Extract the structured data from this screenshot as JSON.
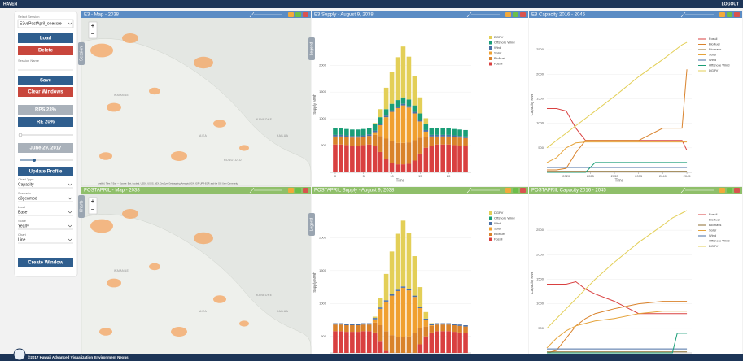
{
  "topbar": {
    "brand": "HAVEN",
    "logout": "LOGOUT"
  },
  "footer": {
    "text": "©2017 Hawaii Advanced Visualization Environment Nexus"
  },
  "sidebar": {
    "session_label": "Select Session",
    "session_value": "E3vsPostApril_onescre",
    "load": "Load",
    "delete": "Delete",
    "session_name": "Session Name",
    "save": "Save",
    "clear": "Clear Windows",
    "rps": "RPS 23%",
    "re": "RE 20%",
    "date": "June 29, 2017",
    "update": "Update Profile",
    "fields": [
      {
        "label": "Chart Type",
        "value": "Capacity"
      },
      {
        "label": "Scenario",
        "value": "e3genmod"
      },
      {
        "label": "Load",
        "value": "Base"
      },
      {
        "label": "Scale",
        "value": "Yearly"
      },
      {
        "label": "Chart",
        "value": "Line"
      }
    ],
    "create": "Create Window",
    "tabs": {
      "session": "Session",
      "charts": "Charts",
      "legend": "Legend"
    }
  },
  "maps": [
    {
      "title": "E3 - Map - 2038",
      "zoom_in": "+",
      "zoom_out": "−",
      "places": [
        "WAIANAE",
        "AIEA",
        "KANEOHE",
        "KAILUA",
        "HONOLULU"
      ],
      "attribution": "Leaflet | Tiles © Esri — Source: Esri, i-cubed, USDA, USGS, AEX, GeoEye, Getmapping, Aerogrid, IGN, IGP, UPR-EGP, and the GIS User Community"
    },
    {
      "title": "POSTAPRIL - Map - 2038",
      "zoom_in": "+",
      "zoom_out": "−",
      "places": [
        "WAIANAE",
        "AIEA",
        "KANEOHE",
        "KAILUA"
      ]
    }
  ],
  "supply": [
    {
      "title": "E3 Supply - August 9, 2038",
      "type": "bar",
      "ylabel": "Supply MWh",
      "xlabel": "Time",
      "x": [
        0,
        1,
        2,
        3,
        4,
        5,
        6,
        7,
        8,
        9,
        10,
        11,
        12,
        13,
        14,
        15,
        16,
        17,
        18,
        19,
        20,
        21,
        22,
        23
      ],
      "xlim": [
        -1,
        24
      ],
      "xticks": [
        0,
        5,
        10,
        15,
        20
      ],
      "ylim": [
        0,
        2550
      ],
      "yticks": [
        500,
        1000,
        1500,
        2000
      ],
      "series": [
        {
          "name": "DGPV",
          "color": "#e3cf57",
          "values": [
            0,
            0,
            0,
            0,
            0,
            0,
            0,
            20,
            150,
            400,
            600,
            800,
            950,
            800,
            550,
            300,
            100,
            10,
            0,
            0,
            0,
            0,
            0,
            0
          ]
        },
        {
          "name": "Offshore Wind",
          "color": "#1a9e77",
          "values": [
            120,
            120,
            120,
            120,
            120,
            120,
            120,
            120,
            120,
            120,
            120,
            120,
            120,
            120,
            120,
            120,
            120,
            120,
            120,
            120,
            120,
            120,
            120,
            120
          ]
        },
        {
          "name": "Wind",
          "color": "#4a6fa5",
          "values": [
            30,
            30,
            30,
            30,
            30,
            30,
            30,
            30,
            30,
            30,
            30,
            30,
            30,
            30,
            30,
            30,
            30,
            30,
            30,
            30,
            30,
            30,
            30,
            30
          ]
        },
        {
          "name": "Solar",
          "color": "#f0a030",
          "values": [
            0,
            0,
            0,
            0,
            0,
            0,
            0,
            50,
            200,
            400,
            550,
            650,
            700,
            650,
            500,
            300,
            100,
            10,
            0,
            0,
            0,
            0,
            0,
            0
          ]
        },
        {
          "name": "BioFuel",
          "color": "#d9822b",
          "values": [
            150,
            150,
            150,
            150,
            150,
            150,
            160,
            200,
            300,
            380,
            400,
            400,
            400,
            400,
            380,
            300,
            200,
            160,
            150,
            150,
            150,
            150,
            150,
            150
          ]
        },
        {
          "name": "Fossil",
          "color": "#d94040",
          "values": [
            520,
            520,
            510,
            500,
            500,
            510,
            520,
            500,
            380,
            250,
            180,
            150,
            150,
            160,
            220,
            350,
            460,
            500,
            520,
            520,
            520,
            510,
            500,
            490
          ]
        }
      ]
    },
    {
      "title": "POSTAPRIL Supply - August 9, 2038",
      "type": "bar",
      "ylabel": "Supply MWh",
      "x": [
        0,
        1,
        2,
        3,
        4,
        5,
        6,
        7,
        8,
        9,
        10,
        11,
        12,
        13,
        14,
        15,
        16,
        17,
        18,
        19,
        20,
        21,
        22,
        23
      ],
      "xlim": [
        -1,
        24
      ],
      "ylim": [
        250,
        2400
      ],
      "yticks": [
        500,
        1000,
        1500,
        2000
      ],
      "series": [
        {
          "name": "DGPV",
          "color": "#e3cf57",
          "values": [
            0,
            0,
            0,
            0,
            0,
            0,
            0,
            20,
            150,
            400,
            650,
            850,
            1000,
            850,
            600,
            300,
            100,
            10,
            0,
            0,
            0,
            0,
            0,
            0
          ]
        },
        {
          "name": "Offshore Wind",
          "color": "#1a9e77",
          "values": [
            0,
            0,
            0,
            0,
            0,
            0,
            0,
            0,
            0,
            0,
            0,
            0,
            0,
            0,
            0,
            0,
            0,
            0,
            0,
            0,
            0,
            0,
            0,
            0
          ]
        },
        {
          "name": "Wind",
          "color": "#4a6fa5",
          "values": [
            20,
            20,
            20,
            20,
            20,
            20,
            20,
            20,
            20,
            20,
            20,
            20,
            20,
            20,
            20,
            20,
            20,
            20,
            20,
            20,
            20,
            20,
            20,
            20
          ]
        },
        {
          "name": "Solar",
          "color": "#f0a030",
          "values": [
            0,
            0,
            0,
            0,
            0,
            0,
            0,
            50,
            250,
            450,
            600,
            700,
            750,
            700,
            550,
            300,
            100,
            10,
            0,
            0,
            0,
            0,
            0,
            0
          ]
        },
        {
          "name": "BioFuel",
          "color": "#d9822b",
          "values": [
            100,
            100,
            100,
            100,
            100,
            100,
            100,
            150,
            250,
            300,
            320,
            320,
            320,
            320,
            300,
            250,
            150,
            100,
            100,
            100,
            100,
            100,
            100,
            100
          ]
        },
        {
          "name": "Fossil",
          "color": "#d94040",
          "values": [
            580,
            580,
            570,
            570,
            570,
            580,
            580,
            560,
            420,
            280,
            200,
            170,
            170,
            180,
            250,
            380,
            500,
            560,
            580,
            580,
            580,
            570,
            560,
            550
          ]
        }
      ]
    }
  ],
  "capacity": [
    {
      "title": "E3 Capacity 2016 - 2045",
      "type": "line",
      "ylabel": "Capacity MW",
      "xlabel": "Time",
      "x": [
        2016,
        2018,
        2020,
        2022,
        2024,
        2026,
        2030,
        2035,
        2040,
        2042,
        2044,
        2045
      ],
      "xlim": [
        2016,
        2046
      ],
      "xticks": [
        2020,
        2025,
        2030,
        2035,
        2040,
        2045
      ],
      "ylim": [
        0,
        2750
      ],
      "yticks": [
        500,
        1000,
        1500,
        2000,
        2500
      ],
      "series": [
        {
          "name": "Fossil",
          "color": "#d94040",
          "values": [
            1300,
            1300,
            1250,
            900,
            650,
            650,
            650,
            650,
            650,
            650,
            650,
            450
          ]
        },
        {
          "name": "BioFuel",
          "color": "#d9822b",
          "values": [
            50,
            50,
            80,
            400,
            650,
            650,
            650,
            650,
            900,
            900,
            900,
            2100
          ]
        },
        {
          "name": "Biomass",
          "color": "#8c6d31",
          "values": [
            20,
            20,
            20,
            20,
            20,
            20,
            20,
            20,
            20,
            20,
            20,
            20
          ]
        },
        {
          "name": "Solar",
          "color": "#e5a33a",
          "values": [
            200,
            300,
            500,
            600,
            620,
            620,
            620,
            620,
            620,
            620,
            620,
            620
          ]
        },
        {
          "name": "Wind",
          "color": "#4a6fa5",
          "values": [
            100,
            100,
            100,
            100,
            100,
            100,
            100,
            100,
            100,
            100,
            100,
            100
          ]
        },
        {
          "name": "Offshore Wind",
          "color": "#1a9e77",
          "values": [
            0,
            0,
            0,
            0,
            0,
            200,
            200,
            200,
            200,
            200,
            200,
            200
          ]
        },
        {
          "name": "DGPV",
          "color": "#e3cf57",
          "values": [
            500,
            650,
            800,
            950,
            1100,
            1250,
            1550,
            1950,
            2300,
            2450,
            2600,
            2650
          ]
        }
      ]
    },
    {
      "title": "POSTAPRIL Capacity 2016 - 2045",
      "type": "line",
      "ylabel": "Capacity MW",
      "x": [
        2016,
        2018,
        2020,
        2022,
        2024,
        2026,
        2030,
        2035,
        2040,
        2042,
        2043,
        2044,
        2045
      ],
      "xlim": [
        2016,
        2046
      ],
      "ylim": [
        0,
        2850
      ],
      "yticks": [
        500,
        1000,
        1500,
        2000,
        2500
      ],
      "series": [
        {
          "name": "Fossil",
          "color": "#d94040",
          "values": [
            1400,
            1400,
            1400,
            1450,
            1300,
            1200,
            1050,
            800,
            800,
            800,
            800,
            800,
            800
          ]
        },
        {
          "name": "BioFuel",
          "color": "#d9822b",
          "values": [
            0,
            50,
            300,
            550,
            700,
            800,
            900,
            1000,
            1050,
            1050,
            1050,
            1050,
            1050
          ]
        },
        {
          "name": "Biomass",
          "color": "#8c6d31",
          "values": [
            20,
            20,
            20,
            20,
            20,
            20,
            20,
            20,
            20,
            20,
            20,
            20,
            20
          ]
        },
        {
          "name": "Solar",
          "color": "#e5a33a",
          "values": [
            100,
            300,
            450,
            550,
            600,
            650,
            700,
            800,
            850,
            850,
            850,
            850,
            850
          ]
        },
        {
          "name": "Wind",
          "color": "#4a6fa5",
          "values": [
            80,
            80,
            80,
            80,
            80,
            80,
            80,
            80,
            80,
            80,
            80,
            80,
            80
          ]
        },
        {
          "name": "Offshore Wind",
          "color": "#1a9e77",
          "values": [
            0,
            0,
            0,
            0,
            0,
            0,
            0,
            0,
            0,
            0,
            400,
            400,
            400
          ]
        },
        {
          "name": "DGPV",
          "color": "#e3cf57",
          "values": [
            500,
            700,
            900,
            1100,
            1300,
            1500,
            1850,
            2250,
            2600,
            2750,
            2800,
            2850,
            2900
          ]
        }
      ]
    }
  ]
}
